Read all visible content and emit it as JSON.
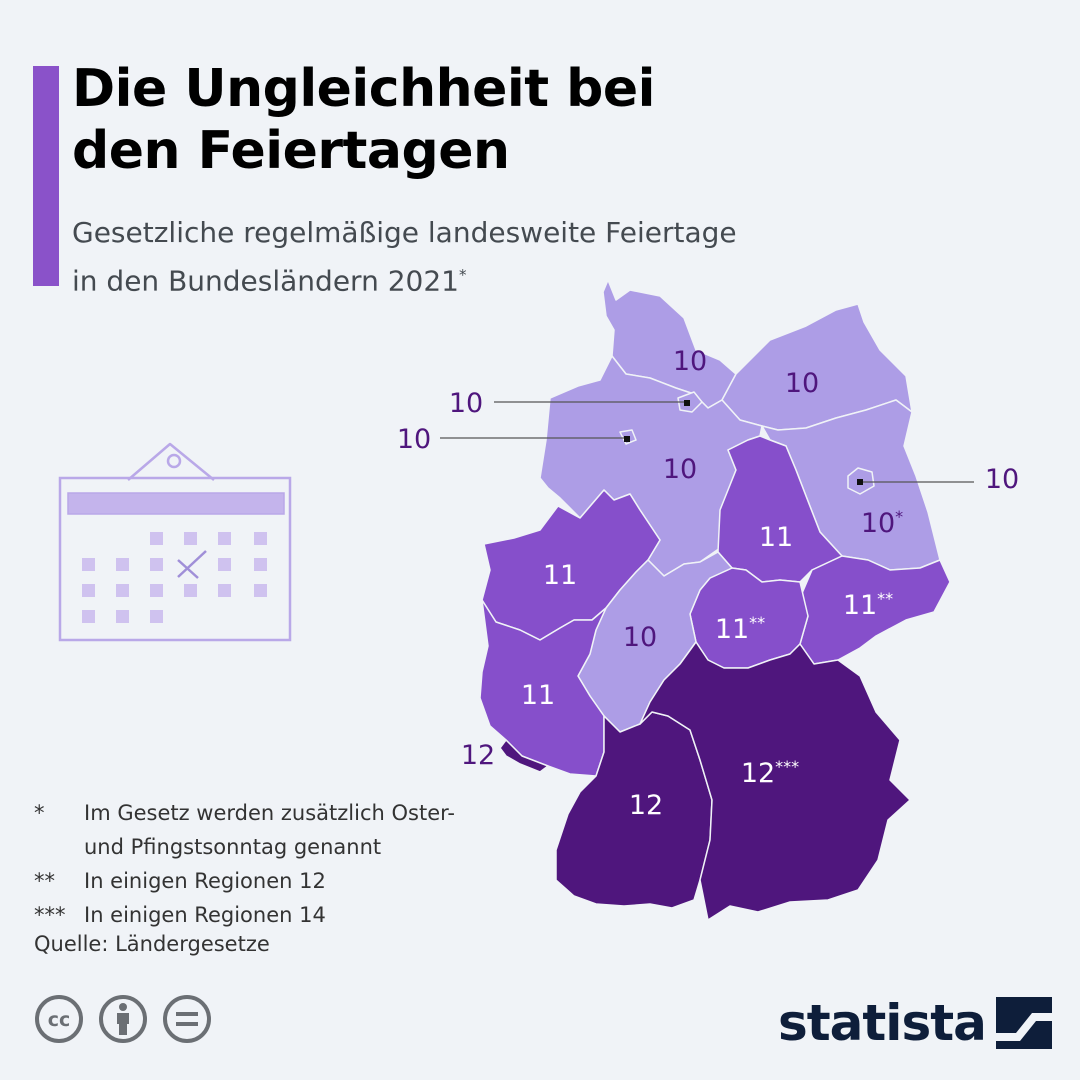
{
  "title": "Die Ungleichheit bei\nden Feiertagen",
  "subtitle_line1": "Gesetzliche regelmäßige landesweite Feiertage",
  "subtitle_line2": "in den Bundesländern 2021",
  "subtitle_mark": "*",
  "colors": {
    "accent": "#8a52c9",
    "holidays_10": "#ad9de6",
    "holidays_11": "#864fcb",
    "holidays_12": "#4f167d",
    "label_dark": "#4f167d",
    "label_light": "#ffffff",
    "background": "#f0f3f7"
  },
  "states": [
    {
      "id": "schleswig-holstein",
      "value": "10"
    },
    {
      "id": "mecklenburg-vorpommern",
      "value": "10"
    },
    {
      "id": "hamburg",
      "value": "10"
    },
    {
      "id": "bremen",
      "value": "10"
    },
    {
      "id": "niedersachsen",
      "value": "10"
    },
    {
      "id": "berlin",
      "value": "10"
    },
    {
      "id": "brandenburg",
      "value": "10",
      "mark": "*"
    },
    {
      "id": "sachsen-anhalt",
      "value": "11"
    },
    {
      "id": "nordrhein-westfalen",
      "value": "11"
    },
    {
      "id": "sachsen",
      "value": "11",
      "mark": "**"
    },
    {
      "id": "thueringen",
      "value": "11",
      "mark": "**"
    },
    {
      "id": "hessen",
      "value": "10"
    },
    {
      "id": "rheinland-pfalz",
      "value": "11"
    },
    {
      "id": "saarland",
      "value": "12"
    },
    {
      "id": "bayern",
      "value": "12",
      "mark": "***"
    },
    {
      "id": "baden-wuerttemberg",
      "value": "12"
    }
  ],
  "footnotes": [
    {
      "mark": "*",
      "text": "Im Gesetz werden zusätzlich Oster-\nund Pfingstsonntag genannt"
    },
    {
      "mark": "**",
      "text": "In einigen Regionen 12"
    },
    {
      "mark": "***",
      "text": "In einigen Regionen 14"
    }
  ],
  "source": "Quelle: Ländergesetze",
  "license_icons": [
    "cc-icon",
    "by-person-icon",
    "nd-equals-icon"
  ],
  "logo": "statista",
  "calendar_icon": "calendar-icon"
}
